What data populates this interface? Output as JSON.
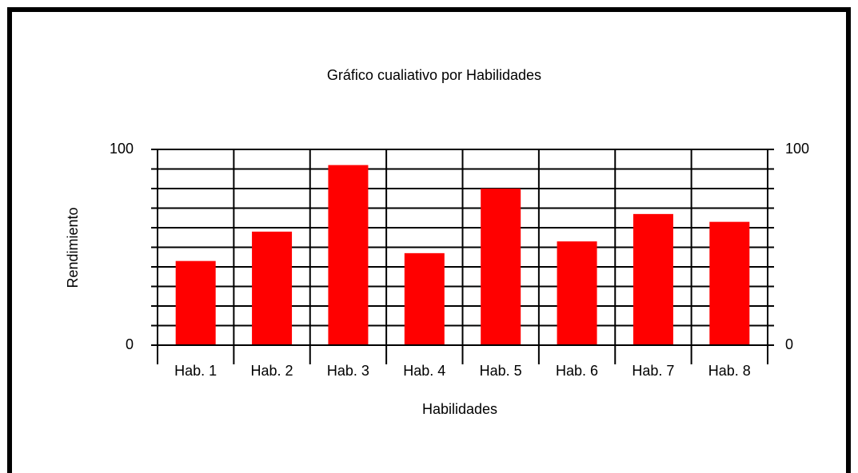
{
  "chart_data": {
    "type": "bar",
    "title": "Gráfico cualiativo por Habilidades",
    "x_label": "Habilidades",
    "y_label": "Rendimiento",
    "categories": [
      "Hab. 1",
      "Hab. 2",
      "Hab. 3",
      "Hab. 4",
      "Hab. 5",
      "Hab. 6",
      "Hab. 7",
      "Hab. 8"
    ],
    "values": [
      43,
      58,
      92,
      47,
      80,
      53,
      67,
      63
    ],
    "color": "#ff0000",
    "ylim": [
      0,
      100
    ],
    "yticks": [
      0,
      100
    ],
    "minor_yticks": [
      10,
      20,
      30,
      40,
      50,
      60,
      70,
      80,
      90
    ],
    "y2lim": [
      0,
      100
    ],
    "y2ticks": [
      0,
      100
    ],
    "grid": true
  }
}
